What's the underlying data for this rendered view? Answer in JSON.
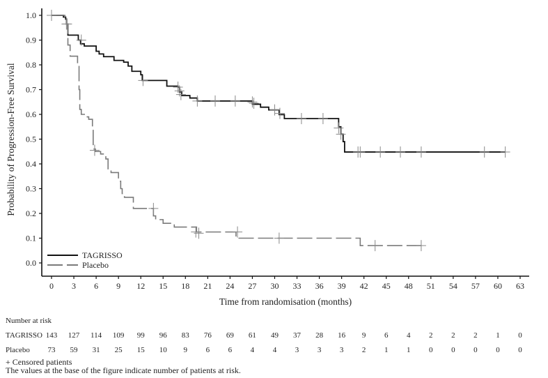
{
  "chart_data": {
    "type": "line",
    "subtype": "kaplan-meier",
    "title": "",
    "xlabel": "Time from randomisation (months)",
    "ylabel": "Probability of Progression-Free Survival",
    "xlim": [
      0,
      63
    ],
    "ylim": [
      0.0,
      1.0
    ],
    "x_ticks": [
      "0",
      "3",
      "6",
      "9",
      "12",
      "15",
      "18",
      "21",
      "24",
      "27",
      "30",
      "33",
      "36",
      "39",
      "42",
      "45",
      "48",
      "51",
      "54",
      "57",
      "60",
      "63"
    ],
    "y_ticks": [
      "0.0",
      "0.1",
      "0.2",
      "0.3",
      "0.4",
      "0.5",
      "0.6",
      "0.7",
      "0.8",
      "0.9",
      "1.0"
    ],
    "grid": false,
    "legend_position": "bottom-left",
    "series": [
      {
        "name": "TAGRISSO",
        "color": "#111111",
        "style": "solid",
        "steps": [
          [
            0,
            1.0
          ],
          [
            1.6,
            0.993
          ],
          [
            1.9,
            0.985
          ],
          [
            2.0,
            0.965
          ],
          [
            2.2,
            0.92
          ],
          [
            3.6,
            0.9
          ],
          [
            3.9,
            0.885
          ],
          [
            4.4,
            0.876
          ],
          [
            6.0,
            0.855
          ],
          [
            6.4,
            0.844
          ],
          [
            7.0,
            0.833
          ],
          [
            8.4,
            0.818
          ],
          [
            9.7,
            0.811
          ],
          [
            10.3,
            0.795
          ],
          [
            10.8,
            0.774
          ],
          [
            12.0,
            0.76
          ],
          [
            12.2,
            0.737
          ],
          [
            15.5,
            0.714
          ],
          [
            17.0,
            0.71
          ],
          [
            17.2,
            0.69
          ],
          [
            17.5,
            0.676
          ],
          [
            18.6,
            0.666
          ],
          [
            19.6,
            0.654
          ],
          [
            27.0,
            0.641
          ],
          [
            28.1,
            0.629
          ],
          [
            29.2,
            0.618
          ],
          [
            30.6,
            0.599
          ],
          [
            31.3,
            0.583
          ],
          [
            38.6,
            0.55
          ],
          [
            38.9,
            0.52
          ],
          [
            39.2,
            0.49
          ],
          [
            39.4,
            0.448
          ],
          [
            61.0,
            0.448
          ]
        ],
        "censored": [
          [
            0,
            1.0
          ],
          [
            2.1,
            0.965
          ],
          [
            4.0,
            0.9
          ],
          [
            12.3,
            0.737
          ],
          [
            17.0,
            0.71
          ],
          [
            17.2,
            0.695
          ],
          [
            17.4,
            0.68
          ],
          [
            19.6,
            0.654
          ],
          [
            22.0,
            0.654
          ],
          [
            24.7,
            0.654
          ],
          [
            27.0,
            0.65
          ],
          [
            27.2,
            0.645
          ],
          [
            30.0,
            0.618
          ],
          [
            30.7,
            0.604
          ],
          [
            33.6,
            0.583
          ],
          [
            36.5,
            0.583
          ],
          [
            38.6,
            0.545
          ],
          [
            38.9,
            0.52
          ],
          [
            41.2,
            0.448
          ],
          [
            41.5,
            0.448
          ],
          [
            44.2,
            0.448
          ],
          [
            46.9,
            0.448
          ],
          [
            49.7,
            0.448
          ],
          [
            58.2,
            0.448
          ],
          [
            61.0,
            0.448
          ]
        ]
      },
      {
        "name": "Placebo",
        "color": "#7a7a7a",
        "style": "dashed",
        "steps": [
          [
            0,
            1.0
          ],
          [
            1.8,
            0.99
          ],
          [
            2.0,
            0.965
          ],
          [
            2.2,
            0.88
          ],
          [
            2.5,
            0.835
          ],
          [
            3.5,
            0.8
          ],
          [
            3.7,
            0.7
          ],
          [
            3.8,
            0.62
          ],
          [
            4.0,
            0.6
          ],
          [
            4.6,
            0.59
          ],
          [
            5.0,
            0.58
          ],
          [
            5.5,
            0.55
          ],
          [
            5.6,
            0.46
          ],
          [
            5.9,
            0.45
          ],
          [
            6.6,
            0.44
          ],
          [
            7.3,
            0.42
          ],
          [
            7.6,
            0.38
          ],
          [
            8.0,
            0.365
          ],
          [
            9.0,
            0.33
          ],
          [
            9.3,
            0.3
          ],
          [
            9.5,
            0.28
          ],
          [
            9.8,
            0.265
          ],
          [
            11.0,
            0.22
          ],
          [
            13.7,
            0.19
          ],
          [
            14.0,
            0.175
          ],
          [
            15.0,
            0.16
          ],
          [
            16.5,
            0.145
          ],
          [
            19.5,
            0.125
          ],
          [
            24.8,
            0.1
          ],
          [
            41.5,
            0.07
          ],
          [
            49.7,
            0.07
          ]
        ],
        "censored": [
          [
            0,
            1.0
          ],
          [
            2.0,
            0.965
          ],
          [
            5.8,
            0.455
          ],
          [
            13.7,
            0.22
          ],
          [
            19.4,
            0.125
          ],
          [
            19.8,
            0.12
          ],
          [
            25.0,
            0.125
          ],
          [
            30.6,
            0.1
          ],
          [
            43.5,
            0.07
          ],
          [
            49.7,
            0.07
          ]
        ]
      }
    ],
    "risk_table": {
      "header": "Number at risk",
      "rows": [
        {
          "label": "TAGRISSO",
          "values": [
            "143",
            "127",
            "114",
            "109",
            "99",
            "96",
            "83",
            "76",
            "69",
            "61",
            "49",
            "37",
            "28",
            "16",
            "9",
            "6",
            "4",
            "2",
            "2",
            "2",
            "1",
            "0"
          ]
        },
        {
          "label": "Placebo",
          "values": [
            "73",
            "59",
            "31",
            "25",
            "15",
            "10",
            "9",
            "6",
            "6",
            "4",
            "4",
            "3",
            "3",
            "3",
            "2",
            "1",
            "1",
            "0",
            "0",
            "0",
            "0",
            "0"
          ]
        }
      ]
    }
  },
  "footnotes": {
    "censored": "+ Censored patients",
    "note": "The values at the base of the figure indicate number of patients at risk."
  }
}
